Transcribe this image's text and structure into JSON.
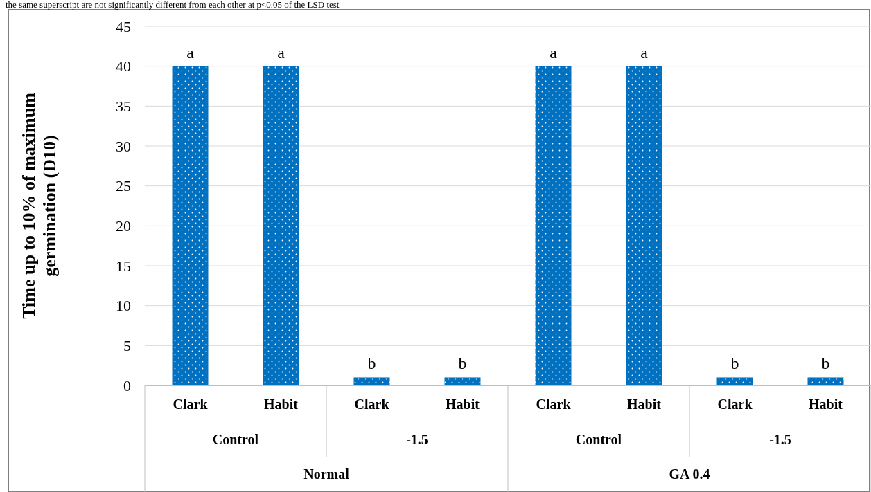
{
  "chart_data": {
    "type": "bar",
    "ylabel": "Time up to 10% of maximum\ngermination (D10)",
    "categories": [
      "Clark",
      "Habit",
      "Clark",
      "Habit",
      "Clark",
      "Habit",
      "Clark",
      "Habit"
    ],
    "values": [
      40,
      40,
      1,
      1,
      40,
      40,
      1,
      1
    ],
    "value_labels": [
      "a",
      "a",
      "b",
      "b",
      "a",
      "a",
      "b",
      "b"
    ],
    "color": "#0070c0",
    "ylim": [
      0,
      45
    ],
    "yticks": [
      0,
      5,
      10,
      15,
      20,
      25,
      30,
      35,
      40,
      45
    ],
    "grid": "y",
    "annotations": [
      "Control",
      "-1.5",
      "Control",
      "-1.5",
      "Normal",
      "GA 0.4",
      "the same superscript are not significantly different from each other at p<0.05 of the LSD test"
    ]
  }
}
